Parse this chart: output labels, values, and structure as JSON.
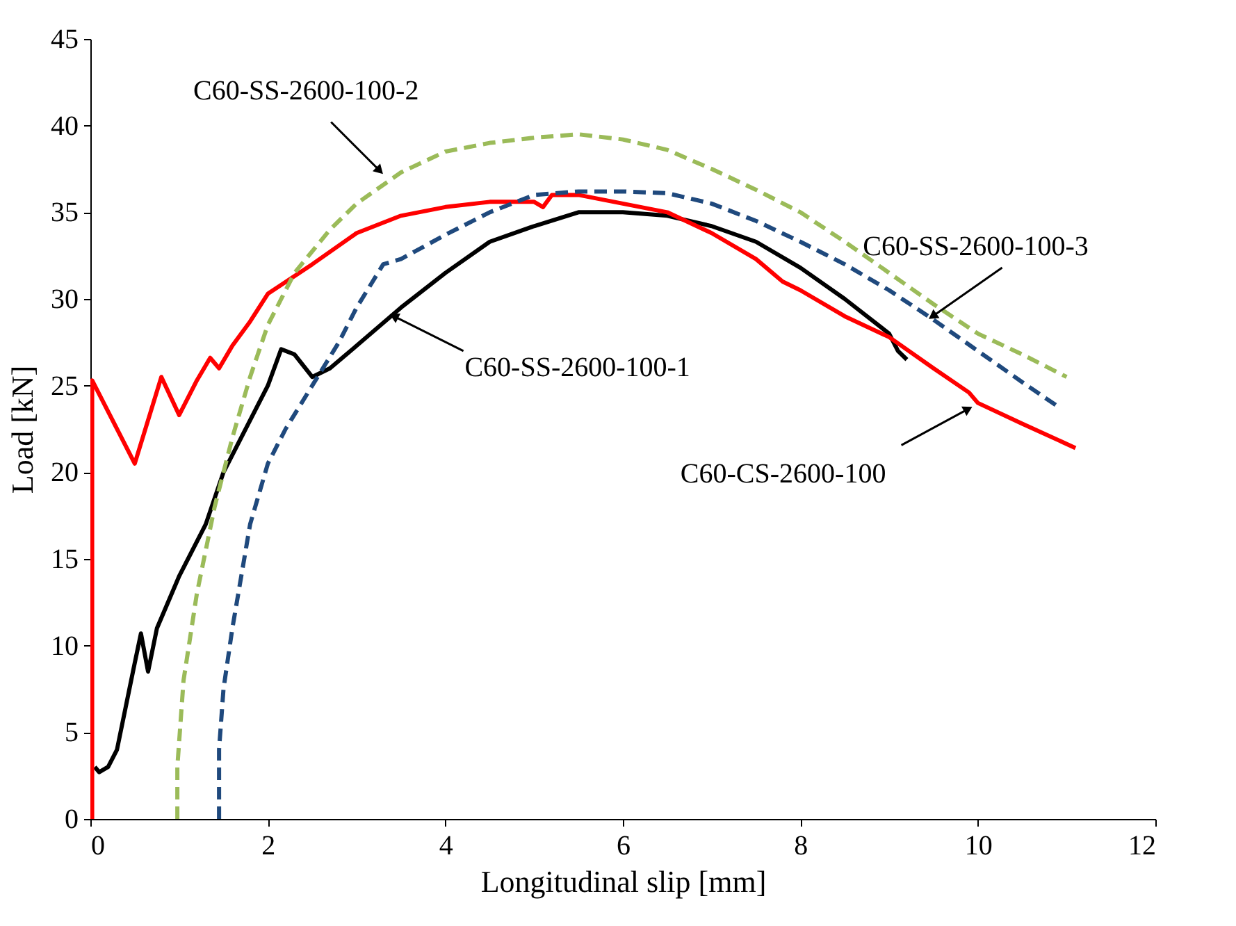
{
  "chart_data": {
    "type": "line",
    "xlabel": "Longitudinal slip [mm]",
    "ylabel": "Load [kN]",
    "xlim": [
      0,
      12
    ],
    "xticks": [
      0,
      2,
      4,
      6,
      8,
      10,
      12
    ],
    "ylim": [
      0,
      45
    ],
    "yticks": [
      0,
      5,
      10,
      15,
      20,
      25,
      30,
      35,
      40,
      45
    ],
    "grid": false,
    "marker": "none",
    "series": [
      {
        "color": "#000000",
        "line_style": "solid",
        "x": [
          0.05,
          0.1,
          0.2,
          0.3,
          0.4,
          0.5,
          0.57,
          0.65,
          0.75,
          1.0,
          1.3,
          1.5,
          1.7,
          2.0,
          2.15,
          2.3,
          2.5,
          2.7,
          3.0,
          3.5,
          4.0,
          4.5,
          5.0,
          5.5,
          6.0,
          6.5,
          7.0,
          7.5,
          8.0,
          8.5,
          9.0,
          9.1,
          9.2
        ],
        "values": [
          3.0,
          2.7,
          3.0,
          4.0,
          6.5,
          9.0,
          10.7,
          8.5,
          11.0,
          14.0,
          17.0,
          20.0,
          22.0,
          25.0,
          27.1,
          26.8,
          25.5,
          26.0,
          27.3,
          29.5,
          31.5,
          33.3,
          34.2,
          35.0,
          35.0,
          34.8,
          34.2,
          33.3,
          31.8,
          30.0,
          28.0,
          27.0,
          26.5
        ]
      },
      {
        "color": "#ff0000",
        "line_style": "solid",
        "x": [
          0.02,
          0.02,
          0.5,
          0.8,
          1.0,
          1.2,
          1.35,
          1.45,
          1.6,
          1.8,
          2.0,
          2.5,
          3.0,
          3.5,
          4.0,
          4.5,
          5.0,
          5.1,
          5.2,
          5.5,
          6.0,
          6.5,
          7.0,
          7.5,
          7.8,
          8.0,
          8.5,
          9.0,
          9.5,
          9.9,
          10.0,
          10.5,
          11.1
        ],
        "values": [
          0,
          25.3,
          20.5,
          25.5,
          23.3,
          25.3,
          26.6,
          26.0,
          27.3,
          28.7,
          30.3,
          32.0,
          33.8,
          34.8,
          35.3,
          35.6,
          35.6,
          35.3,
          36.0,
          36.0,
          35.5,
          35.0,
          33.8,
          32.3,
          31.0,
          30.5,
          29.0,
          27.8,
          26.0,
          24.6,
          24.0,
          22.8,
          21.4
        ]
      },
      {
        "color": "#9bbb59",
        "line_style": "dashed",
        "x": [
          0.98,
          0.98,
          1.05,
          1.2,
          1.4,
          1.6,
          1.8,
          2.0,
          2.3,
          2.7,
          3.0,
          3.5,
          4.0,
          4.5,
          5.0,
          5.5,
          6.0,
          6.5,
          7.0,
          7.5,
          8.0,
          8.5,
          9.0,
          9.5,
          10.0,
          10.5,
          11.0
        ],
        "values": [
          0,
          3.0,
          8.0,
          13.0,
          18.0,
          22.0,
          25.5,
          28.5,
          31.5,
          34.0,
          35.5,
          37.3,
          38.5,
          39.0,
          39.3,
          39.5,
          39.2,
          38.6,
          37.5,
          36.3,
          35.0,
          33.3,
          31.5,
          29.7,
          28.0,
          26.8,
          25.5
        ]
      },
      {
        "color": "#1f497d",
        "line_style": "dashed",
        "x": [
          1.45,
          1.45,
          1.5,
          1.6,
          1.7,
          1.8,
          2.0,
          2.2,
          2.5,
          2.8,
          3.0,
          3.3,
          3.5,
          4.0,
          4.5,
          5.0,
          5.5,
          6.0,
          6.5,
          7.0,
          7.5,
          8.0,
          8.5,
          9.0,
          9.5,
          10.0,
          10.5,
          10.9
        ],
        "values": [
          0,
          4.0,
          7.5,
          11.0,
          14.0,
          17.0,
          20.5,
          22.5,
          25.0,
          27.5,
          29.5,
          32.0,
          32.3,
          33.7,
          35.0,
          36.0,
          36.2,
          36.2,
          36.1,
          35.5,
          34.5,
          33.3,
          32.0,
          30.5,
          28.8,
          27.0,
          25.2,
          23.8
        ]
      }
    ],
    "annotations": [
      {
        "text": "C60-SS-2600-100-2",
        "x": 3.26,
        "y": 37.4
      },
      {
        "text": "C60-SS-2600-100-1",
        "x": 3.42,
        "y": 29.0
      },
      {
        "text": "C60-SS-2600-100-3",
        "x": 9.49,
        "y": 29.0
      },
      {
        "text": "C60-CS-2600-100",
        "x": 9.89,
        "y": 23.65
      }
    ]
  }
}
